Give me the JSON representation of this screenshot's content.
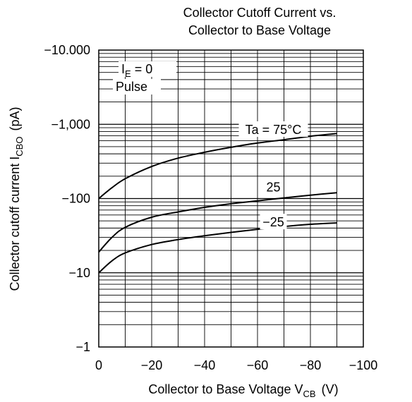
{
  "chart_data": {
    "type": "line",
    "title_lines": [
      "Collector Cutoff Current vs.",
      "Collector to Base Voltage"
    ],
    "xlabel": {
      "main": "Collector to Base Voltage  V",
      "sub": "CB",
      "unit": "(V)"
    },
    "ylabel": {
      "main": "Collector cutoff current I",
      "sub": "CBO",
      "unit": "(pA)"
    },
    "x_scale": "linear",
    "y_scale": "log",
    "xlim": [
      0,
      -100
    ],
    "ylim": [
      -1,
      -10000
    ],
    "x_ticks": [
      0,
      -20,
      -40,
      -60,
      -80,
      -100
    ],
    "x_tick_labels": [
      "0",
      "−20",
      "−40",
      "−60",
      "−80",
      "−100"
    ],
    "y_ticks": [
      -1,
      -10,
      -100,
      -1000,
      -10000
    ],
    "y_tick_labels": [
      "−1",
      "−10",
      "−100",
      "−1,000",
      "−10.000"
    ],
    "grid": true,
    "annotations": {
      "condition_ie": {
        "main": "I",
        "sub": "E",
        "rest": " = 0"
      },
      "condition_pulse": "Pulse"
    },
    "series": [
      {
        "label": "Ta = 75°C",
        "x": [
          0,
          -5,
          -10,
          -20,
          -30,
          -40,
          -50,
          -60,
          -70,
          -80,
          -90
        ],
        "y": [
          -100,
          -140,
          -185,
          -270,
          -350,
          -420,
          -490,
          -560,
          -620,
          -690,
          -750
        ]
      },
      {
        "label": "25",
        "x": [
          0,
          -5,
          -10,
          -20,
          -30,
          -40,
          -50,
          -60,
          -70,
          -80,
          -90
        ],
        "y": [
          -19,
          -30,
          -41,
          -56,
          -66,
          -76,
          -85,
          -93,
          -102,
          -111,
          -120
        ]
      },
      {
        "label": "−25",
        "x": [
          0,
          -5,
          -10,
          -20,
          -30,
          -40,
          -50,
          -60,
          -70,
          -80,
          -90
        ],
        "y": [
          -10,
          -14.5,
          -18.5,
          -24,
          -28,
          -31.5,
          -35,
          -38.5,
          -42,
          -45,
          -47
        ]
      }
    ],
    "label_anchor_x": [
      -66,
      -66,
      -66
    ],
    "label_anchor_y": [
      -740,
      -125,
      -42
    ]
  }
}
